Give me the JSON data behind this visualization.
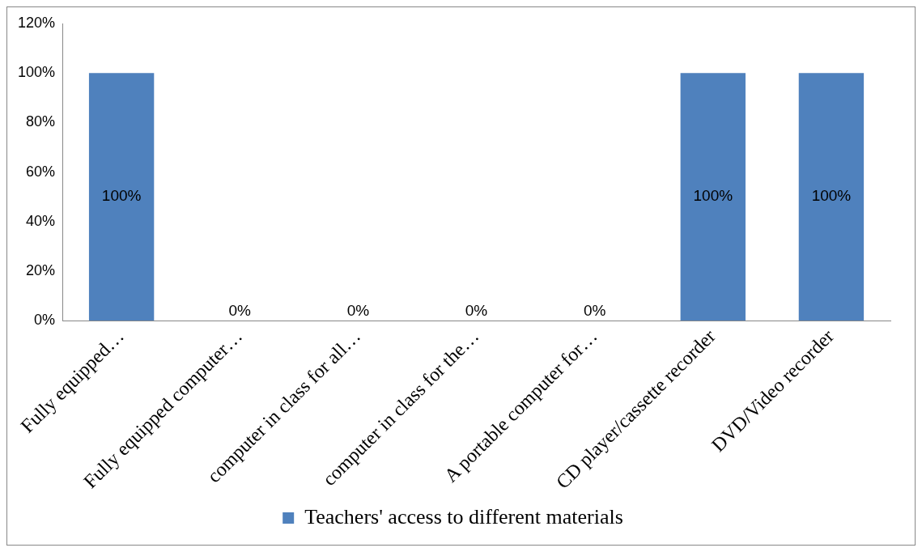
{
  "chart_data": {
    "type": "bar",
    "categories": [
      "Fully equipped…",
      "Fully equipped computer…",
      "computer in class for all…",
      "computer in class for the…",
      "A portable computer for…",
      "CD player/cassette recorder",
      "DVD/Video recorder"
    ],
    "series": [
      {
        "name": "Teachers' access to different materials",
        "color": "#4f81bd",
        "values": [
          100,
          0,
          0,
          0,
          0,
          100,
          100
        ],
        "value_labels": [
          "100%",
          "0%",
          "0%",
          "0%",
          "0%",
          "100%",
          "100%"
        ]
      }
    ],
    "ylim": [
      0,
      120
    ],
    "yticks": [
      {
        "value": 0,
        "label": "0%"
      },
      {
        "value": 20,
        "label": "20%"
      },
      {
        "value": 40,
        "label": "40%"
      },
      {
        "value": 60,
        "label": "60%"
      },
      {
        "value": 80,
        "label": "80%"
      },
      {
        "value": 100,
        "label": "100%"
      },
      {
        "value": 120,
        "label": "120%"
      }
    ],
    "grid": false,
    "legend": "bottom"
  }
}
